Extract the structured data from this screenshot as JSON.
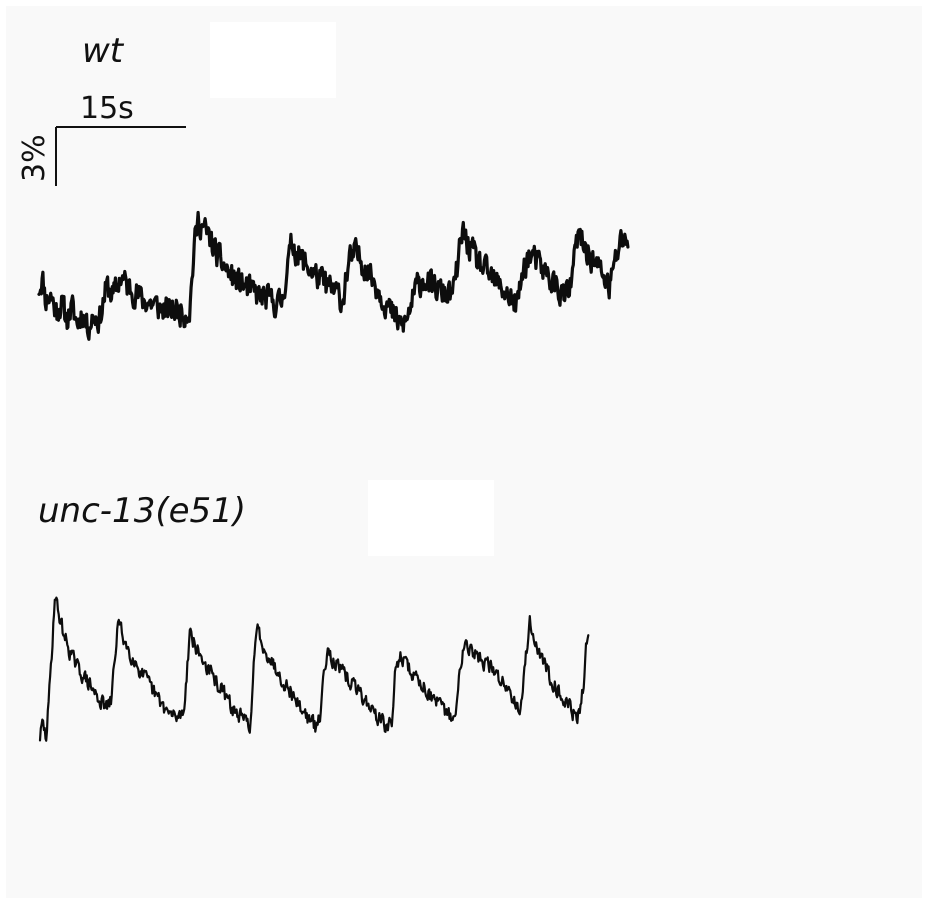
{
  "chart_data": [
    {
      "type": "line",
      "panel_label": "wt",
      "scale_bar": {
        "time_label": "15s",
        "amplitude_label": "3%"
      },
      "x_unit": "s",
      "y_unit": "%",
      "keypoints": [
        [
          0.0,
          0.0
        ],
        [
          0.4,
          0.5
        ],
        [
          0.8,
          -0.6
        ],
        [
          1.4,
          -0.4
        ],
        [
          2.0,
          -1.2
        ],
        [
          2.6,
          -0.8
        ],
        [
          3.2,
          -1.6
        ],
        [
          3.8,
          -1.0
        ],
        [
          4.4,
          -1.8
        ],
        [
          5.0,
          -1.2
        ],
        [
          5.6,
          -2.0
        ],
        [
          6.3,
          -1.4
        ],
        [
          7.0,
          -1.6
        ],
        [
          7.8,
          0.1
        ],
        [
          8.6,
          -0.4
        ],
        [
          9.4,
          0.6
        ],
        [
          10.2,
          0.1
        ],
        [
          11.0,
          -0.2
        ],
        [
          12.0,
          -0.6
        ],
        [
          13.0,
          -0.8
        ],
        [
          14.0,
          -1.0
        ],
        [
          15.0,
          -1.2
        ],
        [
          16.0,
          -1.1
        ],
        [
          16.8,
          -1.3
        ],
        [
          17.4,
          -1.1
        ],
        [
          17.9,
          2.1
        ],
        [
          18.4,
          3.5
        ],
        [
          19.0,
          3.0
        ],
        [
          19.6,
          2.6
        ],
        [
          20.4,
          1.8
        ],
        [
          21.2,
          1.2
        ],
        [
          22.0,
          0.7
        ],
        [
          23.0,
          0.3
        ],
        [
          24.0,
          0.0
        ],
        [
          25.0,
          -0.3
        ],
        [
          26.0,
          -0.5
        ],
        [
          27.0,
          -0.7
        ],
        [
          27.6,
          -0.8
        ],
        [
          28.1,
          -0.6
        ],
        [
          28.6,
          1.0
        ],
        [
          29.2,
          2.3
        ],
        [
          29.9,
          1.7
        ],
        [
          30.8,
          1.2
        ],
        [
          31.8,
          0.7
        ],
        [
          32.8,
          0.3
        ],
        [
          33.8,
          -0.1
        ],
        [
          34.6,
          -0.3
        ],
        [
          35.0,
          -0.8
        ],
        [
          35.4,
          0.5
        ],
        [
          35.9,
          1.4
        ],
        [
          36.6,
          1.8
        ],
        [
          37.3,
          1.3
        ],
        [
          38.2,
          0.7
        ],
        [
          39.2,
          -0.1
        ],
        [
          40.2,
          -0.9
        ],
        [
          41.0,
          -1.5
        ],
        [
          41.8,
          -1.9
        ],
        [
          42.4,
          -1.7
        ],
        [
          42.9,
          -0.9
        ],
        [
          43.6,
          0.1
        ],
        [
          44.4,
          0.5
        ],
        [
          45.2,
          0.1
        ],
        [
          46.0,
          -0.1
        ],
        [
          46.8,
          -0.3
        ],
        [
          47.4,
          -0.3
        ],
        [
          47.9,
          -0.1
        ],
        [
          48.4,
          1.5
        ],
        [
          48.9,
          2.9
        ],
        [
          49.5,
          2.2
        ],
        [
          50.4,
          1.5
        ],
        [
          51.4,
          0.9
        ],
        [
          52.4,
          0.4
        ],
        [
          53.4,
          0.0
        ],
        [
          54.4,
          -0.5
        ],
        [
          55.0,
          -0.9
        ],
        [
          55.4,
          -0.4
        ],
        [
          55.9,
          1.0
        ],
        [
          56.6,
          1.7
        ],
        [
          57.4,
          1.3
        ],
        [
          58.2,
          0.9
        ],
        [
          59.0,
          0.5
        ],
        [
          59.8,
          0.0
        ],
        [
          60.6,
          -0.4
        ],
        [
          61.2,
          -0.3
        ],
        [
          61.7,
          1.3
        ],
        [
          62.2,
          2.7
        ],
        [
          62.8,
          2.2
        ],
        [
          63.6,
          1.6
        ],
        [
          64.4,
          1.1
        ],
        [
          65.2,
          0.6
        ],
        [
          65.8,
          0.0
        ],
        [
          66.4,
          1.2
        ],
        [
          67.0,
          2.2
        ],
        [
          67.6,
          2.7
        ],
        [
          68.0,
          2.2
        ]
      ]
    },
    {
      "type": "line",
      "panel_label": "unc-13(e51)",
      "x_unit": "s",
      "y_unit": "%",
      "keypoints": [
        [
          0.0,
          -3.6
        ],
        [
          0.3,
          -2.9
        ],
        [
          0.7,
          -3.7
        ],
        [
          1.0,
          -1.9
        ],
        [
          1.4,
          1.0
        ],
        [
          1.7,
          3.6
        ],
        [
          2.1,
          2.8
        ],
        [
          2.7,
          1.7
        ],
        [
          3.4,
          0.8
        ],
        [
          4.2,
          0.0
        ],
        [
          5.0,
          -0.5
        ],
        [
          5.8,
          -1.0
        ],
        [
          6.5,
          -1.5
        ],
        [
          7.2,
          -1.9
        ],
        [
          7.8,
          -2.1
        ],
        [
          8.2,
          -1.8
        ],
        [
          8.6,
          0.2
        ],
        [
          9.0,
          2.3
        ],
        [
          9.5,
          1.6
        ],
        [
          10.2,
          0.8
        ],
        [
          10.9,
          0.3
        ],
        [
          11.6,
          -0.3
        ],
        [
          12.4,
          -0.8
        ],
        [
          13.2,
          -1.4
        ],
        [
          14.0,
          -1.9
        ],
        [
          14.8,
          -2.4
        ],
        [
          15.6,
          -2.6
        ],
        [
          16.2,
          -2.5
        ],
        [
          16.6,
          -2.2
        ],
        [
          17.0,
          0.0
        ],
        [
          17.3,
          1.9
        ],
        [
          17.8,
          1.1
        ],
        [
          18.5,
          0.5
        ],
        [
          19.2,
          0.0
        ],
        [
          20.0,
          -0.6
        ],
        [
          20.8,
          -1.1
        ],
        [
          21.6,
          -1.7
        ],
        [
          22.4,
          -2.3
        ],
        [
          23.2,
          -2.6
        ],
        [
          23.8,
          -2.9
        ],
        [
          24.3,
          -2.9
        ],
        [
          24.7,
          0.2
        ],
        [
          25.1,
          2.0
        ],
        [
          25.6,
          1.2
        ],
        [
          26.4,
          0.5
        ],
        [
          27.2,
          -0.1
        ],
        [
          28.0,
          -0.7
        ],
        [
          28.8,
          -1.2
        ],
        [
          29.6,
          -1.8
        ],
        [
          30.4,
          -2.3
        ],
        [
          31.2,
          -2.8
        ],
        [
          31.8,
          -3.1
        ],
        [
          32.3,
          -2.7
        ],
        [
          32.8,
          -0.1
        ],
        [
          33.2,
          1.0
        ],
        [
          33.8,
          0.3
        ],
        [
          34.6,
          -0.2
        ],
        [
          35.4,
          -0.6
        ],
        [
          36.2,
          -1.0
        ],
        [
          37.0,
          -1.4
        ],
        [
          37.8,
          -1.9
        ],
        [
          38.6,
          -2.4
        ],
        [
          39.4,
          -2.8
        ],
        [
          40.1,
          -3.1
        ],
        [
          40.6,
          -2.9
        ],
        [
          41.0,
          -0.3
        ],
        [
          41.5,
          0.6
        ],
        [
          42.2,
          0.1
        ],
        [
          43.0,
          -0.4
        ],
        [
          43.8,
          -0.8
        ],
        [
          44.6,
          -1.2
        ],
        [
          45.4,
          -1.7
        ],
        [
          46.2,
          -2.1
        ],
        [
          47.0,
          -2.4
        ],
        [
          47.6,
          -2.6
        ],
        [
          48.0,
          -2.6
        ],
        [
          48.5,
          0.1
        ],
        [
          49.0,
          1.5
        ],
        [
          49.6,
          0.9
        ],
        [
          50.4,
          0.5
        ],
        [
          51.2,
          0.2
        ],
        [
          52.0,
          -0.1
        ],
        [
          52.8,
          -0.5
        ],
        [
          53.6,
          -0.9
        ],
        [
          54.4,
          -1.4
        ],
        [
          55.0,
          -1.8
        ],
        [
          55.5,
          -2.2
        ],
        [
          56.0,
          0.3
        ],
        [
          56.5,
          2.2
        ],
        [
          57.1,
          1.3
        ],
        [
          57.8,
          0.5
        ],
        [
          58.5,
          -0.2
        ],
        [
          59.2,
          -0.8
        ],
        [
          60.0,
          -1.4
        ],
        [
          60.8,
          -1.9
        ],
        [
          61.4,
          -2.3
        ],
        [
          62.0,
          -2.6
        ],
        [
          62.4,
          -2.2
        ],
        [
          62.8,
          -0.6
        ],
        [
          63.1,
          1.4
        ],
        [
          63.3,
          1.7
        ]
      ]
    }
  ]
}
